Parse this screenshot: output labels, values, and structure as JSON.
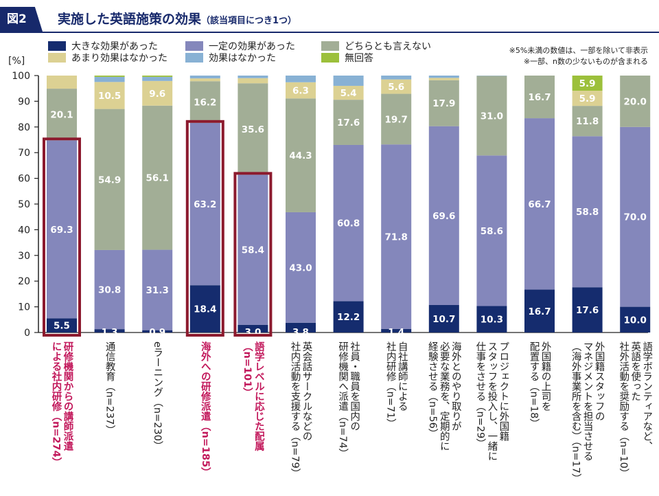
{
  "figure": {
    "badge": "図2",
    "title": "実施した英語施策の効果",
    "subtitle": "（該当項目につき1つ）"
  },
  "notes": [
    "※5%未満の数値は、一部を除いて非表示",
    "※一部、n数の少ないものが含まれる"
  ],
  "colors": {
    "big": "#152c6e",
    "some": "#8487bb",
    "neutral": "#a2ae96",
    "notmuch": "#dcd193",
    "none": "#88b1d4",
    "noans": "#9cc03b",
    "highlight": "#8c1a2e",
    "label_highlight": "#c2185b",
    "title": "#17296b"
  },
  "chart_data": {
    "type": "bar",
    "stacked": true,
    "orientation": "vertical",
    "ylabel": "[%]",
    "ylim": [
      0,
      100
    ],
    "yticks": [
      0,
      10,
      20,
      30,
      40,
      50,
      60,
      70,
      80,
      90,
      100
    ],
    "grid": false,
    "legend_position": "top",
    "series": [
      {
        "name": "大きな効果があった",
        "key": "big",
        "values": [
          5.5,
          1.3,
          0.9,
          18.4,
          3.0,
          3.8,
          12.2,
          1.4,
          10.7,
          10.3,
          16.7,
          17.6,
          10.0
        ]
      },
      {
        "name": "一定の効果があった",
        "key": "some",
        "values": [
          69.3,
          30.8,
          31.3,
          63.2,
          58.4,
          43.0,
          60.8,
          71.8,
          69.6,
          58.6,
          66.7,
          58.8,
          70.0
        ]
      },
      {
        "name": "どちらとも言えない",
        "key": "neutral",
        "values": [
          20.1,
          54.9,
          56.1,
          16.2,
          35.6,
          44.3,
          17.6,
          19.7,
          17.9,
          31.0,
          16.7,
          11.8,
          20.0
        ]
      },
      {
        "name": "あまり効果はなかった",
        "key": "notmuch",
        "values": [
          5.1,
          10.5,
          9.6,
          1.1,
          2.0,
          6.3,
          5.4,
          5.6,
          0.9,
          0,
          0,
          5.9,
          0
        ]
      },
      {
        "name": "効果はなかった",
        "key": "none",
        "values": [
          0,
          2.0,
          1.6,
          1.1,
          1.0,
          2.6,
          4.0,
          1.5,
          0.9,
          0.1,
          0,
          0,
          0
        ]
      },
      {
        "name": "無回答",
        "key": "noans",
        "values": [
          0,
          0.5,
          0.5,
          0,
          0,
          0,
          0,
          0,
          0,
          0,
          0,
          5.9,
          0
        ]
      }
    ],
    "labels": [
      [
        {
          "s": 0,
          "t": "5.5"
        },
        {
          "s": 1,
          "t": "69.3"
        },
        {
          "s": 2,
          "t": "20.1"
        }
      ],
      [
        {
          "s": 0,
          "t": "1.3"
        },
        {
          "s": 1,
          "t": "30.8"
        },
        {
          "s": 2,
          "t": "54.9"
        },
        {
          "s": 3,
          "t": "10.5"
        }
      ],
      [
        {
          "s": 0,
          "t": "0.9"
        },
        {
          "s": 1,
          "t": "31.3"
        },
        {
          "s": 2,
          "t": "56.1"
        },
        {
          "s": 3,
          "t": "9.6"
        }
      ],
      [
        {
          "s": 0,
          "t": "18.4"
        },
        {
          "s": 1,
          "t": "63.2"
        },
        {
          "s": 2,
          "t": "16.2"
        }
      ],
      [
        {
          "s": 0,
          "t": "3.0"
        },
        {
          "s": 1,
          "t": "58.4"
        },
        {
          "s": 2,
          "t": "35.6"
        }
      ],
      [
        {
          "s": 0,
          "t": "3.8"
        },
        {
          "s": 1,
          "t": "43.0"
        },
        {
          "s": 2,
          "t": "44.3"
        },
        {
          "s": 3,
          "t": "6.3"
        }
      ],
      [
        {
          "s": 0,
          "t": "12.2"
        },
        {
          "s": 1,
          "t": "60.8"
        },
        {
          "s": 2,
          "t": "17.6"
        },
        {
          "s": 3,
          "t": "5.4"
        }
      ],
      [
        {
          "s": 0,
          "t": "1.4"
        },
        {
          "s": 1,
          "t": "71.8"
        },
        {
          "s": 2,
          "t": "19.7"
        },
        {
          "s": 3,
          "t": "5.6"
        }
      ],
      [
        {
          "s": 0,
          "t": "10.7"
        },
        {
          "s": 1,
          "t": "69.6"
        },
        {
          "s": 2,
          "t": "17.9"
        }
      ],
      [
        {
          "s": 0,
          "t": "10.3"
        },
        {
          "s": 1,
          "t": "58.6"
        },
        {
          "s": 2,
          "t": "31.0"
        }
      ],
      [
        {
          "s": 0,
          "t": "16.7"
        },
        {
          "s": 1,
          "t": "66.7"
        },
        {
          "s": 2,
          "t": "16.7"
        }
      ],
      [
        {
          "s": 0,
          "t": "17.6"
        },
        {
          "s": 1,
          "t": "58.8"
        },
        {
          "s": 2,
          "t": "11.8"
        },
        {
          "s": 3,
          "t": "5.9"
        },
        {
          "s": 5,
          "t": "5.9"
        }
      ],
      [
        {
          "s": 0,
          "t": "10.0"
        },
        {
          "s": 1,
          "t": "70.0"
        },
        {
          "s": 2,
          "t": "20.0"
        }
      ]
    ],
    "categories": [
      {
        "lines": [
          "研修機関からの講師派遣",
          "による社内研修（n=274）"
        ],
        "highlight": true
      },
      {
        "lines": [
          "通信教育（n=237）"
        ],
        "highlight": false
      },
      {
        "lines": [
          "eラーニング（n=230）"
        ],
        "highlight": false
      },
      {
        "lines": [
          "海外への研修派遣（n=185）"
        ],
        "highlight": true
      },
      {
        "lines": [
          "語学レベルに応じた配属",
          "（n=101）"
        ],
        "highlight": true
      },
      {
        "lines": [
          "英会話サークルなどの",
          "社内活動を支援する（n=79）"
        ],
        "highlight": false
      },
      {
        "lines": [
          "社員・職員を国内の",
          "研修機関へ派遣（n=74）"
        ],
        "highlight": false
      },
      {
        "lines": [
          "自社講師による",
          "社内研修（n=71）"
        ],
        "highlight": false
      },
      {
        "lines": [
          "海外とのやり取りが",
          "必要な業務を、定期的に",
          "経験させる（n=56）"
        ],
        "highlight": false
      },
      {
        "lines": [
          "プロジェクトに外国籍",
          "スタッフを投入し、一緒に",
          "仕事をさせる（n=29）"
        ],
        "highlight": false
      },
      {
        "lines": [
          "外国籍の上司を",
          "配置する（n=18）"
        ],
        "highlight": false
      },
      {
        "lines": [
          "外国籍スタッフの",
          "マネジメントを担当させる",
          "（海外事業所を含む）（n=17）"
        ],
        "highlight": false
      },
      {
        "lines": [
          "語学ボランティアなど、",
          "英語を使った",
          "社外活動を奨励する（n=10）"
        ],
        "highlight": false
      }
    ]
  }
}
